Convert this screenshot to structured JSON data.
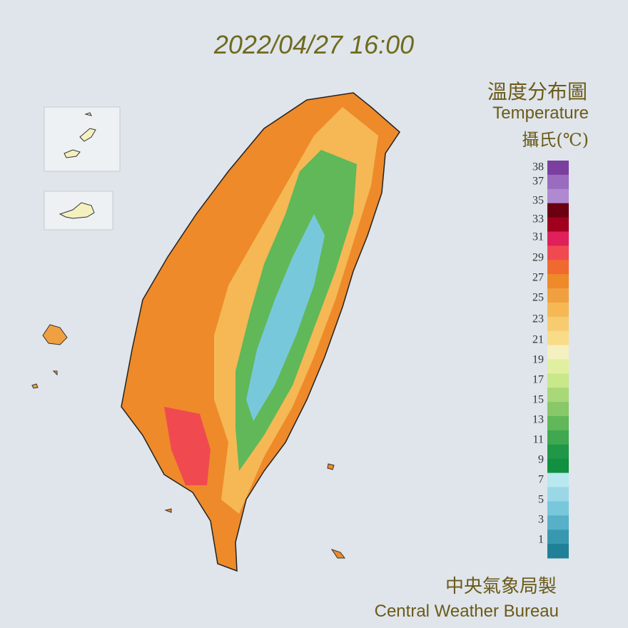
{
  "timestamp": "2022/04/27 16:00",
  "title": "溫度分布圖",
  "subtitle": "Temperature",
  "unit": "攝氏(℃)",
  "legend": {
    "labels": [
      38,
      37,
      35,
      33,
      31,
      29,
      27,
      25,
      23,
      21,
      19,
      17,
      15,
      13,
      11,
      9,
      7,
      5,
      3,
      1
    ],
    "colors": [
      "#7b3fa0",
      "#9a6bbf",
      "#b08ad0",
      "#6a0010",
      "#a0001e",
      "#e0205a",
      "#f04a50",
      "#f06a30",
      "#ee8a2a",
      "#f0a040",
      "#f5b855",
      "#f7cc70",
      "#f9dc88",
      "#f5f0c0",
      "#e0f0a0",
      "#c8e88a",
      "#a8d878",
      "#88c868",
      "#60b858",
      "#40a850",
      "#209848",
      "#109040",
      "#b8e8f0",
      "#9ad8e8",
      "#78c8dc",
      "#58b0c8",
      "#3898b0",
      "#208098"
    ]
  },
  "footer": {
    "zh": "中央氣象局製",
    "en": "Central Weather Bureau"
  }
}
